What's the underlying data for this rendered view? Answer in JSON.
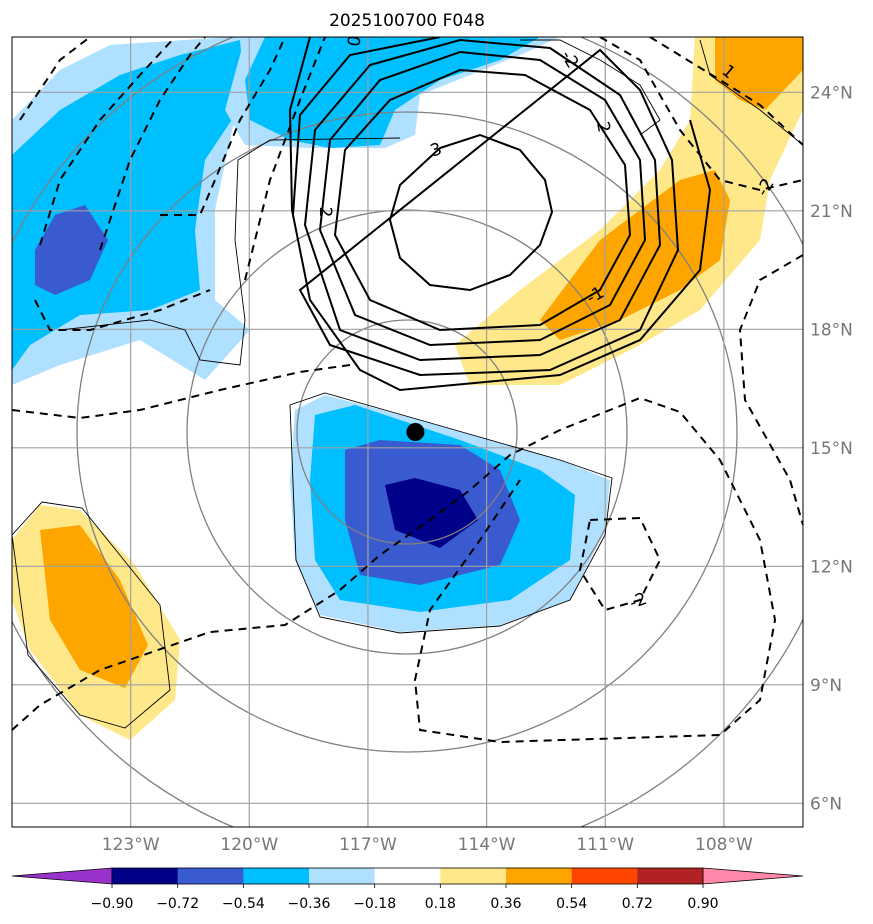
{
  "title": "2025100700 F048",
  "chart_data": {
    "type": "heatmap",
    "title": "2025100700 F048",
    "map_extent": {
      "lon": [
        -126,
        -106
      ],
      "lat": [
        5.4,
        25.4
      ]
    },
    "lon_ticks": [
      {
        "value": -123,
        "label": "123°W"
      },
      {
        "value": -120,
        "label": "120°W"
      },
      {
        "value": -117,
        "label": "117°W"
      },
      {
        "value": -114,
        "label": "114°W"
      },
      {
        "value": -111,
        "label": "111°W"
      },
      {
        "value": -108,
        "label": "108°W"
      }
    ],
    "lat_ticks": [
      {
        "value": 6,
        "label": "6°N"
      },
      {
        "value": 9,
        "label": "9°N"
      },
      {
        "value": 12,
        "label": "12°N"
      },
      {
        "value": 15,
        "label": "15°N"
      },
      {
        "value": 18,
        "label": "18°N"
      },
      {
        "value": 21,
        "label": "21°N"
      },
      {
        "value": 24,
        "label": "24°N"
      }
    ],
    "grid": true,
    "storm_center": {
      "lon": -115.8,
      "lat": 15.4
    },
    "colorbar": {
      "boundaries": [
        -0.9,
        -0.72,
        -0.54,
        -0.36,
        -0.18,
        0.18,
        0.36,
        0.54,
        0.72,
        0.9
      ],
      "labels": [
        "−0.90",
        "−0.72",
        "−0.54",
        "−0.36",
        "−0.18",
        "0.18",
        "0.36",
        "0.54",
        "0.72",
        "0.90"
      ],
      "under_color": "#9933cc",
      "over_color": "#ff88aa",
      "colors": [
        "#000088",
        "#3a5bd0",
        "#00bfff",
        "#b0e0ff",
        "#ffffff",
        "#ffe88a",
        "#ffa500",
        "#ff4500",
        "#b22222"
      ]
    },
    "contour_labels": [
      "3",
      "2",
      "2",
      "0",
      "-1",
      "-2",
      "-2",
      "1",
      "-2"
    ]
  }
}
